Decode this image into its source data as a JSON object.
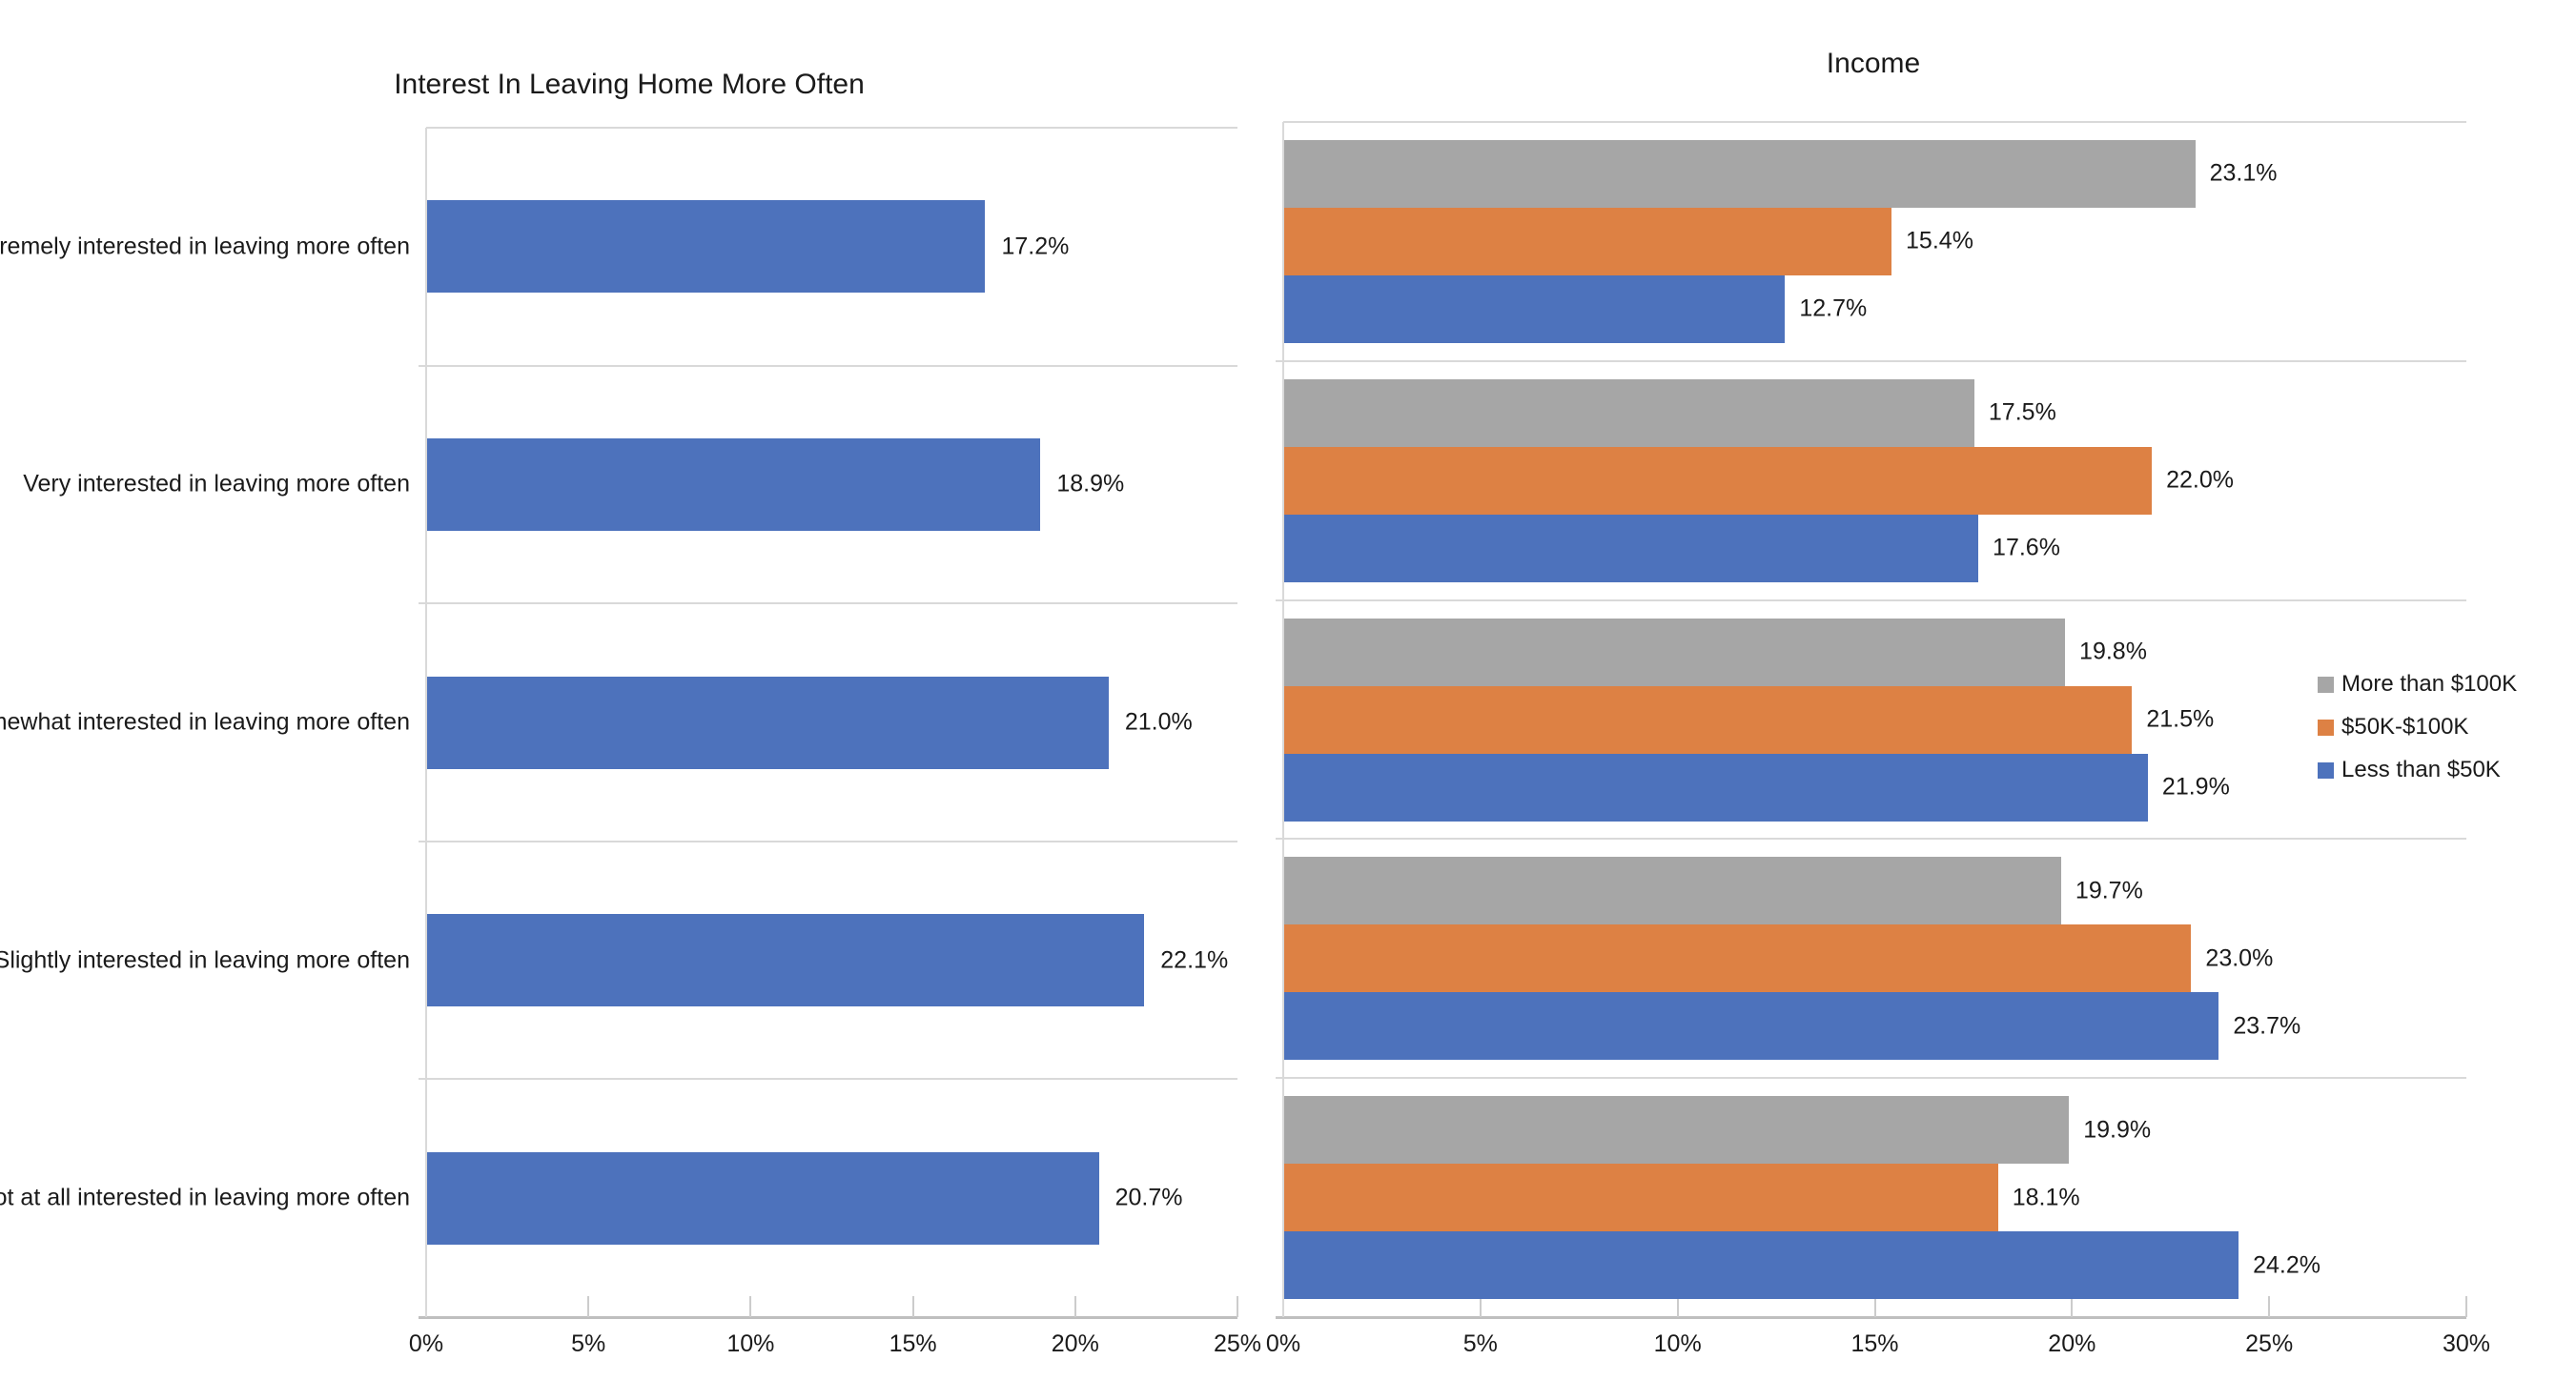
{
  "chart_data": [
    {
      "id": "interest-in-leaving",
      "type": "bar",
      "orientation": "horizontal",
      "title": "Interest In Leaving Home More Often",
      "categories": [
        "Extremely interested in leaving more often",
        "Very interested in leaving more often",
        "Somewhat interested in leaving more often",
        "Slightly interested in leaving more often",
        "Not at all interested in leaving more often"
      ],
      "series": [
        {
          "color": "#4D72BC",
          "values": [
            17.2,
            18.9,
            21.0,
            22.1,
            20.7
          ],
          "labels": [
            "17.2%",
            "18.9%",
            "21.0%",
            "22.1%",
            "20.7%"
          ]
        }
      ],
      "xlim": [
        0,
        25
      ],
      "x_ticks": [
        "0%",
        "5%",
        "10%",
        "15%",
        "20%",
        "25%"
      ],
      "grid": "category-separators",
      "data_labels": "outside-end",
      "legend": null
    },
    {
      "id": "income",
      "type": "bar",
      "orientation": "horizontal",
      "title": "Income",
      "categories": [
        "Extremely interested in leaving more often",
        "Very interested in leaving more often",
        "Somewhat interested in leaving more often",
        "Slightly interested in leaving more often",
        "Not at all interested in leaving more often"
      ],
      "series": [
        {
          "name": "More than $100K",
          "color": "#A6A6A6",
          "values": [
            23.1,
            17.5,
            19.8,
            19.7,
            19.9
          ],
          "labels": [
            "23.1%",
            "17.5%",
            "19.8%",
            "19.7%",
            "19.9%"
          ]
        },
        {
          "name": "$50K-$100K",
          "color": "#DD8144",
          "values": [
            15.4,
            22.0,
            21.5,
            23.0,
            18.1
          ],
          "labels": [
            "15.4%",
            "22.0%",
            "21.5%",
            "23.0%",
            "18.1%"
          ]
        },
        {
          "name": "Less than $50K",
          "color": "#4D72BC",
          "values": [
            12.7,
            17.6,
            21.9,
            23.7,
            24.2
          ],
          "labels": [
            "12.7%",
            "17.6%",
            "21.9%",
            "23.7%",
            "24.2%"
          ]
        }
      ],
      "xlim": [
        0,
        30
      ],
      "x_ticks": [
        "0%",
        "5%",
        "10%",
        "15%",
        "20%",
        "25%",
        "30%"
      ],
      "grid": "category-separators",
      "data_labels": "outside-end",
      "legend": {
        "position": "right",
        "entries": [
          {
            "label": "More than $100K",
            "color": "#A6A6A6"
          },
          {
            "label": "$50K-$100K",
            "color": "#DD8144"
          },
          {
            "label": "Less than $50K",
            "color": "#4D72BC"
          }
        ]
      }
    }
  ]
}
